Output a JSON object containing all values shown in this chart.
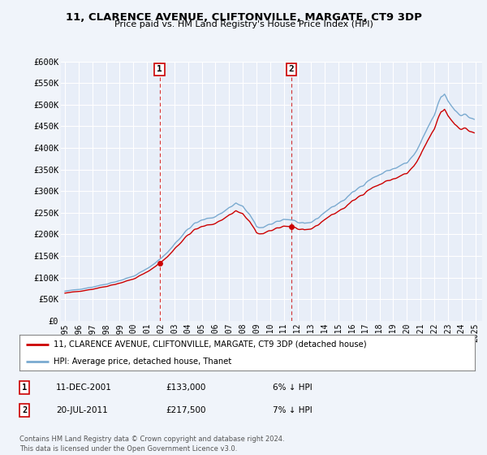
{
  "title": "11, CLARENCE AVENUE, CLIFTONVILLE, MARGATE, CT9 3DP",
  "subtitle": "Price paid vs. HM Land Registry's House Price Index (HPI)",
  "legend_line1": "11, CLARENCE AVENUE, CLIFTONVILLE, MARGATE, CT9 3DP (detached house)",
  "legend_line2": "HPI: Average price, detached house, Thanet",
  "annotation1_date": "11-DEC-2001",
  "annotation1_price": "£133,000",
  "annotation1_hpi": "6% ↓ HPI",
  "annotation2_date": "20-JUL-2011",
  "annotation2_price": "£217,500",
  "annotation2_hpi": "7% ↓ HPI",
  "footnote1": "Contains HM Land Registry data © Crown copyright and database right 2024.",
  "footnote2": "This data is licensed under the Open Government Licence v3.0.",
  "ylim": [
    0,
    600000
  ],
  "yticks": [
    0,
    50000,
    100000,
    150000,
    200000,
    250000,
    300000,
    350000,
    400000,
    450000,
    500000,
    550000,
    600000
  ],
  "ytick_labels": [
    "£0",
    "£50K",
    "£100K",
    "£150K",
    "£200K",
    "£250K",
    "£300K",
    "£350K",
    "£400K",
    "£450K",
    "£500K",
    "£550K",
    "£600K"
  ],
  "background_color": "#f0f4fa",
  "plot_bg_color": "#e8eef8",
  "grid_color": "#ffffff",
  "red_color": "#cc0000",
  "blue_color": "#7aaad0",
  "marker1_x": 2001.917,
  "marker1_y": 133000,
  "marker2_x": 2011.542,
  "marker2_y": 217500,
  "xmin": 1994.7,
  "xmax": 2025.5
}
